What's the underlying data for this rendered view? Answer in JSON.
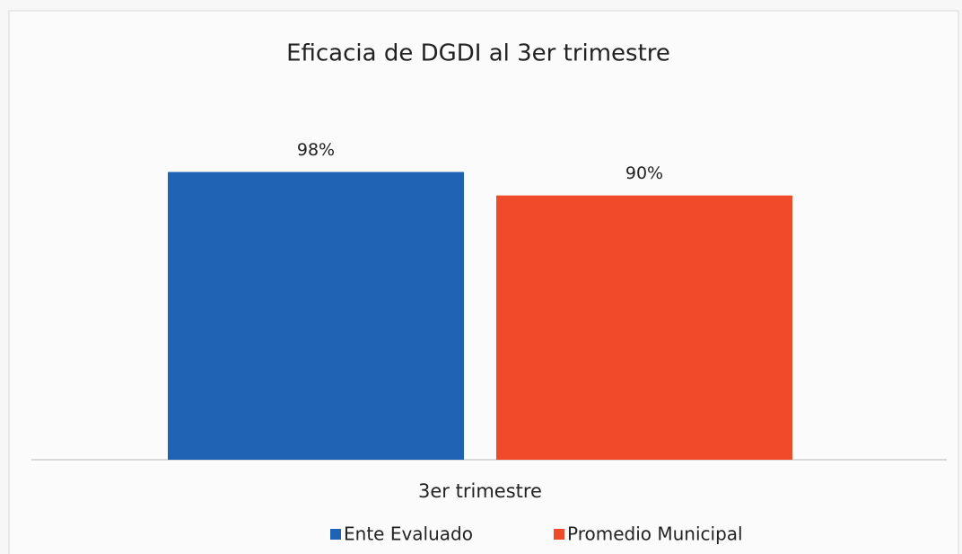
{
  "chart_data": {
    "type": "bar",
    "title": "Eficacia de DGDI al 3er trimestre",
    "categories": [
      "3er trimestre"
    ],
    "series": [
      {
        "name": "Ente Evaluado",
        "color": "#1f63b5",
        "label_color": "#1c2f55",
        "values": [
          98
        ],
        "value_labels": [
          "98%"
        ]
      },
      {
        "name": "Promedio Municipal",
        "color": "#ef4a2a",
        "label_color": "#e0452a",
        "values": [
          90
        ],
        "value_labels": [
          "90%"
        ]
      }
    ],
    "legend": "bottom"
  }
}
